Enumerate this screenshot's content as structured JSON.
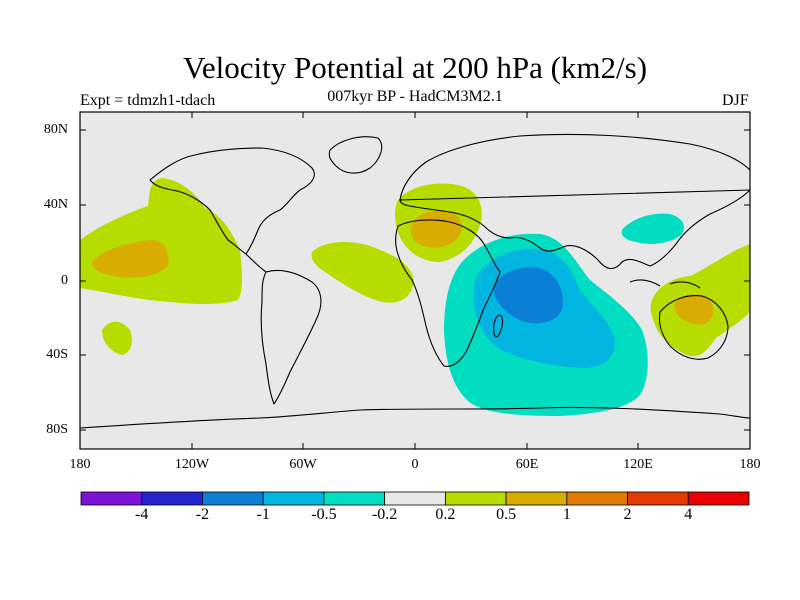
{
  "title": "Velocity Potential at 200 hPa (km2/s)",
  "subtitle": "007kyr BP - HadCM3M2.1",
  "experiment": "Expt = tdmzh1-tdach",
  "season": "DJF",
  "lat_labels": [
    "80N",
    "40N",
    "0",
    "40S",
    "80S"
  ],
  "lon_labels": [
    "180",
    "120W",
    "60W",
    "0",
    "60E",
    "120E",
    "180"
  ],
  "colorbar": {
    "labels": [
      "-4",
      "-2",
      "-1",
      "-0.5",
      "-0.2",
      "0.2",
      "0.5",
      "1",
      "2",
      "4"
    ],
    "colors": [
      "#7b12d6",
      "#2424d0",
      "#0b7ed6",
      "#00b6e0",
      "#00ddc0",
      "#e8e8e8",
      "#b6dc00",
      "#d8ac00",
      "#e07a00",
      "#e23a00",
      "#e80000"
    ]
  },
  "map": {
    "ocean_color": "#e8e8e8",
    "features": [
      "Positive velocity potential over the central tropical Pacific and western North America",
      "Positive velocity potential over North Africa and the Mediterranean",
      "Positive velocity potential over the tropical Atlantic",
      "Positive velocity potential over Australia and the western Pacific",
      "Negative velocity potential centered over the Indian Ocean",
      "Weak negative velocity potential over southern China"
    ]
  }
}
